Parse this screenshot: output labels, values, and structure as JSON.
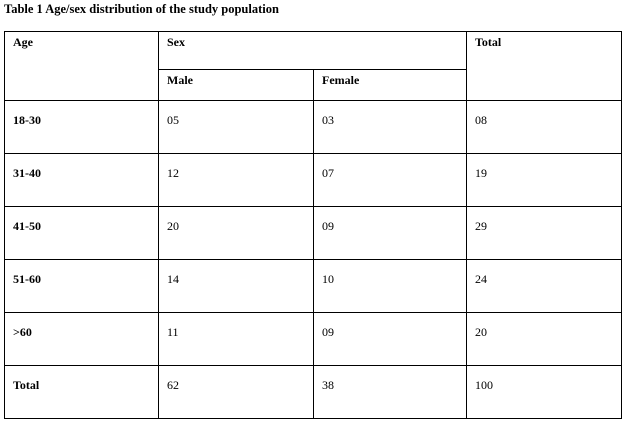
{
  "title": "Table 1 Age/sex distribution of the study population",
  "table": {
    "header": {
      "age": "Age",
      "sex": "Sex",
      "total": "Total",
      "male": "Male",
      "female": "Female"
    },
    "rows": [
      [
        "18-30",
        "05",
        "03",
        "08"
      ],
      [
        "31-40",
        "12",
        "07",
        "19"
      ],
      [
        "41-50",
        "20",
        "09",
        "29"
      ],
      [
        "51-60",
        "14",
        "10",
        "24"
      ],
      [
        ">60",
        "11",
        "09",
        "20"
      ],
      [
        "Total",
        "62",
        "38",
        "100"
      ]
    ]
  }
}
